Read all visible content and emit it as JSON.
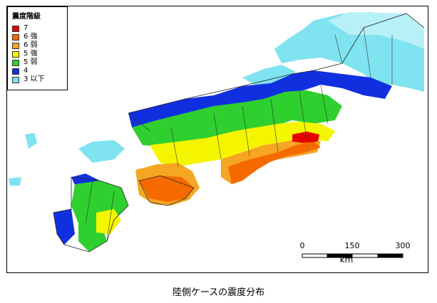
{
  "legend": {
    "title": "震度階級",
    "items": [
      {
        "label": "7",
        "color": "#e60000"
      },
      {
        "label": "6 強",
        "color": "#f56a00"
      },
      {
        "label": "6 弱",
        "color": "#f5a623"
      },
      {
        "label": "5 強",
        "color": "#f5f500"
      },
      {
        "label": "5 弱",
        "color": "#2fcf2f"
      },
      {
        "label": "4",
        "color": "#1030e0"
      },
      {
        "label": "3 以下",
        "color": "#7fe3f0"
      }
    ]
  },
  "scale_bar": {
    "ticks": [
      "0",
      "150",
      "300"
    ],
    "unit": "km"
  },
  "caption": "陸側ケースの震度分布"
}
